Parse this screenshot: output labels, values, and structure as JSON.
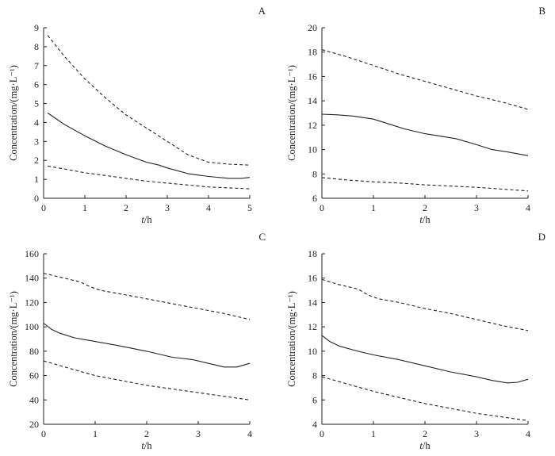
{
  "chart_data": [
    {
      "panel": "A",
      "type": "line",
      "xlabel_italic": "t",
      "xlabel_rest": "/h",
      "ylabel": "Concentration/(mg·L⁻¹)",
      "xlim": [
        0,
        5
      ],
      "ylim": [
        0,
        9
      ],
      "xticks": [
        0,
        1,
        2,
        3,
        4,
        5
      ],
      "yticks": [
        0,
        1,
        2,
        3,
        4,
        5,
        6,
        7,
        8,
        9
      ],
      "grid": false,
      "series": [
        {
          "style": "dashed",
          "x": [
            0.1,
            0.5,
            1,
            1.5,
            2,
            2.5,
            3,
            3.5,
            4,
            4.5,
            5
          ],
          "y": [
            8.6,
            7.5,
            6.3,
            5.3,
            4.4,
            3.7,
            3.0,
            2.3,
            1.9,
            1.8,
            1.75
          ]
        },
        {
          "style": "solid",
          "x": [
            0.1,
            0.5,
            1,
            1.5,
            2,
            2.5,
            2.8,
            3.0,
            3.5,
            4,
            4.5,
            4.8,
            5
          ],
          "y": [
            4.5,
            3.9,
            3.3,
            2.75,
            2.3,
            1.9,
            1.75,
            1.6,
            1.3,
            1.15,
            1.05,
            1.05,
            1.1
          ]
        },
        {
          "style": "dashed",
          "x": [
            0.1,
            0.5,
            1,
            1.5,
            2,
            2.5,
            3,
            3.5,
            4,
            4.5,
            5
          ],
          "y": [
            1.7,
            1.55,
            1.35,
            1.2,
            1.05,
            0.9,
            0.8,
            0.7,
            0.6,
            0.55,
            0.5
          ]
        }
      ]
    },
    {
      "panel": "B",
      "type": "line",
      "xlabel_italic": "t",
      "xlabel_rest": "/h",
      "ylabel": "Concentration/(mg·L⁻¹)",
      "xlim": [
        0,
        4
      ],
      "ylim": [
        6,
        20
      ],
      "xticks": [
        0,
        1,
        2,
        3,
        4
      ],
      "yticks": [
        6,
        8,
        10,
        12,
        14,
        16,
        18,
        20
      ],
      "grid": false,
      "series": [
        {
          "style": "dashed",
          "x": [
            0,
            0.5,
            1,
            1.5,
            2,
            2.5,
            3,
            3.5,
            4
          ],
          "y": [
            18.2,
            17.6,
            16.9,
            16.2,
            15.6,
            15.0,
            14.4,
            13.9,
            13.3
          ]
        },
        {
          "style": "solid",
          "x": [
            0,
            0.3,
            0.6,
            1.0,
            1.3,
            1.6,
            2.0,
            2.3,
            2.6,
            3.0,
            3.3,
            3.6,
            4.0
          ],
          "y": [
            12.9,
            12.85,
            12.75,
            12.5,
            12.1,
            11.7,
            11.3,
            11.1,
            10.9,
            10.4,
            10.0,
            9.8,
            9.5
          ]
        },
        {
          "style": "dashed",
          "x": [
            0,
            0.5,
            1,
            1.5,
            2,
            2.5,
            3,
            3.5,
            4
          ],
          "y": [
            7.7,
            7.5,
            7.35,
            7.25,
            7.1,
            7.0,
            6.9,
            6.75,
            6.6
          ]
        }
      ]
    },
    {
      "panel": "C",
      "type": "line",
      "xlabel_italic": "t",
      "xlabel_rest": "/h",
      "ylabel": "Concentration/(mg·L⁻¹)",
      "xlim": [
        0,
        4
      ],
      "ylim": [
        20,
        160
      ],
      "xticks": [
        0,
        1,
        2,
        3,
        4
      ],
      "yticks": [
        20,
        40,
        60,
        80,
        100,
        120,
        140,
        160
      ],
      "grid": false,
      "series": [
        {
          "style": "dashed",
          "x": [
            0,
            0.3,
            0.7,
            0.9,
            1.1,
            1.5,
            2,
            2.5,
            3,
            3.5,
            4
          ],
          "y": [
            144,
            141,
            137,
            133,
            130,
            127,
            123,
            119,
            115,
            111,
            106
          ]
        },
        {
          "style": "solid",
          "x": [
            0,
            0.15,
            0.3,
            0.6,
            1.0,
            1.4,
            2.0,
            2.5,
            2.9,
            3.2,
            3.5,
            3.75,
            4.0
          ],
          "y": [
            103,
            98,
            95,
            91,
            88,
            85,
            80,
            75,
            73,
            70,
            67,
            67,
            70
          ]
        },
        {
          "style": "dashed",
          "x": [
            0,
            0.5,
            1,
            1.5,
            2,
            2.5,
            3,
            3.5,
            4
          ],
          "y": [
            72,
            66,
            60,
            56,
            52,
            49,
            46,
            43,
            40
          ]
        }
      ]
    },
    {
      "panel": "D",
      "type": "line",
      "xlabel_italic": "t",
      "xlabel_rest": "/h",
      "ylabel": "Concentration/(mg·L⁻¹)",
      "xlim": [
        0,
        4
      ],
      "ylim": [
        4,
        18
      ],
      "xticks": [
        0,
        1,
        2,
        3,
        4
      ],
      "yticks": [
        4,
        6,
        8,
        10,
        12,
        14,
        16,
        18
      ],
      "grid": false,
      "series": [
        {
          "style": "dashed",
          "x": [
            0,
            0.3,
            0.7,
            0.9,
            1.1,
            1.5,
            2,
            2.5,
            3,
            3.5,
            4
          ],
          "y": [
            15.9,
            15.5,
            15.1,
            14.6,
            14.3,
            14.0,
            13.5,
            13.1,
            12.6,
            12.1,
            11.7
          ]
        },
        {
          "style": "solid",
          "x": [
            0,
            0.15,
            0.35,
            0.7,
            1.0,
            1.5,
            2.0,
            2.5,
            3.0,
            3.3,
            3.6,
            3.8,
            4.0
          ],
          "y": [
            11.3,
            10.8,
            10.4,
            10.0,
            9.7,
            9.3,
            8.8,
            8.3,
            7.9,
            7.6,
            7.4,
            7.45,
            7.7
          ]
        },
        {
          "style": "dashed",
          "x": [
            0,
            0.5,
            1,
            1.5,
            2,
            2.5,
            3,
            3.5,
            4
          ],
          "y": [
            7.9,
            7.3,
            6.7,
            6.2,
            5.7,
            5.3,
            4.9,
            4.6,
            4.3
          ]
        }
      ]
    }
  ]
}
